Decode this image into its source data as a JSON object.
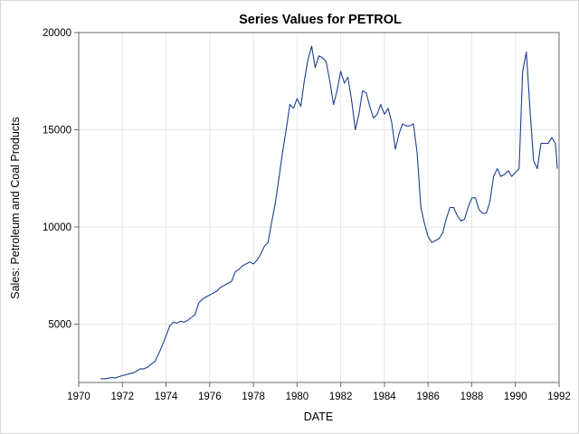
{
  "chart_data": {
    "type": "line",
    "title": "Series Values for PETROL",
    "xlabel": "DATE",
    "ylabel": "Sales: Petroleum and Coal Products",
    "xlim": [
      1970,
      1992
    ],
    "ylim": [
      2000,
      20000
    ],
    "x_ticks": [
      1970,
      1972,
      1974,
      1976,
      1978,
      1980,
      1982,
      1984,
      1986,
      1988,
      1990,
      1992
    ],
    "x_tick_labels": [
      "1970",
      "1972",
      "1974",
      "1976",
      "1978",
      "1980",
      "1982",
      "1984",
      "1986",
      "1988",
      "1990",
      "1992"
    ],
    "y_ticks": [
      5000,
      10000,
      15000,
      20000
    ],
    "y_tick_labels": [
      "5000",
      "10000",
      "15000",
      "20000"
    ],
    "grid": true,
    "series_color": "#1b3f8f",
    "series": [
      {
        "x": [
          1971.0,
          1971.17,
          1971.33,
          1971.5,
          1971.67,
          1971.83,
          1972.0,
          1972.17,
          1972.33,
          1972.5,
          1972.67,
          1972.83,
          1973.0,
          1973.17,
          1973.33,
          1973.5,
          1973.67,
          1973.83,
          1974.0,
          1974.17,
          1974.33,
          1974.5,
          1974.67,
          1974.83,
          1975.0,
          1975.17,
          1975.33,
          1975.5,
          1975.67,
          1975.83,
          1976.0,
          1976.17,
          1976.33,
          1976.5,
          1976.67,
          1976.83,
          1977.0,
          1977.17,
          1977.33,
          1977.5,
          1977.67,
          1977.83,
          1978.0,
          1978.17,
          1978.33,
          1978.5,
          1978.67,
          1978.83,
          1979.0,
          1979.17,
          1979.33,
          1979.5,
          1979.67,
          1979.83,
          1980.0,
          1980.17,
          1980.33,
          1980.5,
          1980.67,
          1980.83,
          1981.0,
          1981.17,
          1981.33,
          1981.5,
          1981.67,
          1981.83,
          1982.0,
          1982.17,
          1982.33,
          1982.5,
          1982.67,
          1982.83,
          1983.0,
          1983.17,
          1983.33,
          1983.5,
          1983.67,
          1983.83,
          1984.0,
          1984.17,
          1984.33,
          1984.5,
          1984.67,
          1984.83,
          1985.0,
          1985.17,
          1985.33,
          1985.5,
          1985.67,
          1985.83,
          1986.0,
          1986.17,
          1986.33,
          1986.5,
          1986.67,
          1986.83,
          1987.0,
          1987.17,
          1987.33,
          1987.5,
          1987.67,
          1987.83,
          1988.0,
          1988.17,
          1988.33,
          1988.5,
          1988.67,
          1988.83,
          1989.0,
          1989.17,
          1989.33,
          1989.5,
          1989.67,
          1989.83,
          1990.0,
          1990.17,
          1990.33,
          1990.5,
          1990.67,
          1990.83,
          1991.0,
          1991.17,
          1991.33,
          1991.5,
          1991.67,
          1991.83,
          1991.92
        ],
        "y": [
          2200,
          2180,
          2220,
          2250,
          2230,
          2300,
          2350,
          2400,
          2450,
          2500,
          2600,
          2700,
          2700,
          2800,
          2950,
          3100,
          3500,
          3900,
          4400,
          4900,
          5100,
          5050,
          5150,
          5100,
          5200,
          5350,
          5500,
          6100,
          6300,
          6400,
          6500,
          6600,
          6700,
          6900,
          7000,
          7100,
          7200,
          7700,
          7800,
          8000,
          8100,
          8200,
          8100,
          8300,
          8600,
          9000,
          9200,
          10200,
          11200,
          12500,
          13800,
          15000,
          16300,
          16100,
          16600,
          16200,
          17500,
          18600,
          19300,
          18200,
          18800,
          18700,
          18500,
          17500,
          16300,
          17000,
          18000,
          17400,
          17700,
          16500,
          15000,
          15800,
          17000,
          16900,
          16200,
          15600,
          15800,
          16300,
          15800,
          16100,
          15400,
          14000,
          14800,
          15300,
          15200,
          15200,
          15300,
          13800,
          11000,
          10200,
          9500,
          9200,
          9300,
          9400,
          9700,
          10400,
          11000,
          11000,
          10600,
          10300,
          10400,
          11000,
          11500,
          11500,
          10900,
          10700,
          10700,
          11300,
          12600,
          13000,
          12600,
          12700,
          12900,
          12600,
          12800,
          13000,
          18000,
          19000,
          16000,
          13400,
          13000,
          14300,
          14300,
          14300,
          14600,
          14300,
          13000
        ]
      }
    ]
  }
}
